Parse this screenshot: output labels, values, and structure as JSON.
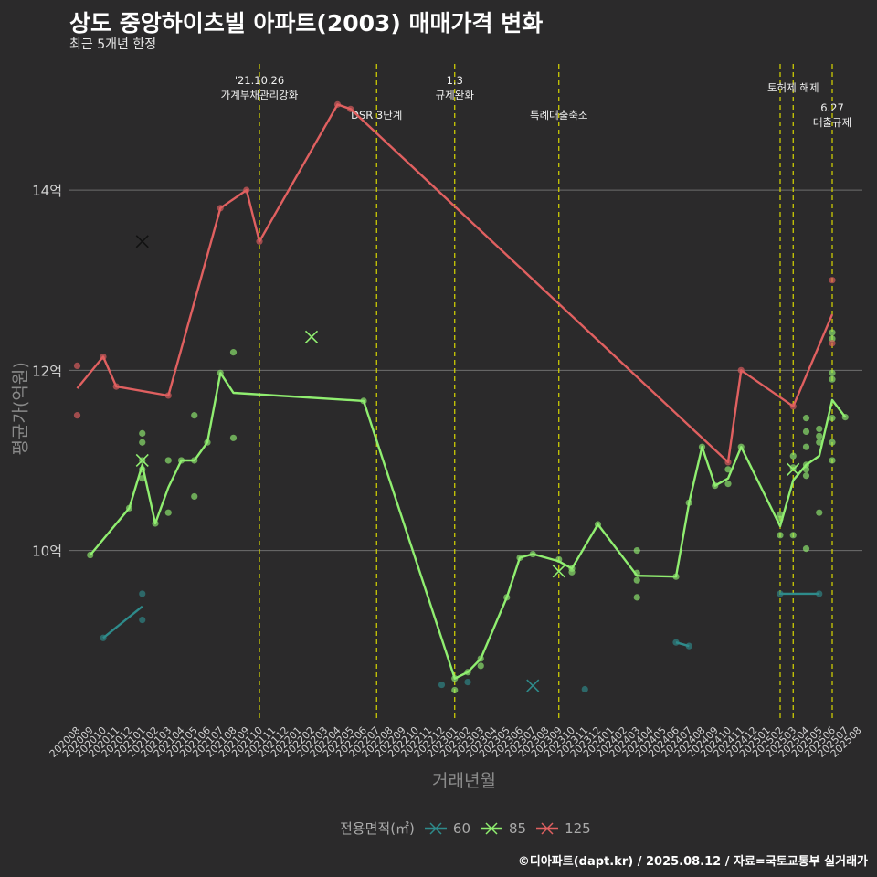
{
  "title": "상도 중앙하이츠빌 아파트(2003) 매매가격 변화",
  "subtitle": "최근 5개년 한정",
  "caption": "©디아파트(dapt.kr) / 2025.08.12 / 자료=국토교통부 실거래가",
  "chart_data": {
    "type": "line",
    "title": "상도 중앙하이츠빌 아파트(2003) 매매가격 변화",
    "subtitle": "최근 5개년 한정",
    "xlabel": "거래년월",
    "ylabel": "평균가(억원)",
    "ylim": [
      8.1,
      15.4
    ],
    "y_ticks": [
      10,
      12,
      14
    ],
    "y_tick_labels": [
      "10억",
      "12억",
      "14억"
    ],
    "grid": "horizontal major lines",
    "background": "#2b2a2b",
    "x_start": "2020-08",
    "x_end": "2025-08",
    "legend_title": "전용면적(㎡)",
    "legend_position": "bottom",
    "events": [
      {
        "x": "2021-10",
        "label": "'21.10.26\n가계부채관리강화",
        "row": 0
      },
      {
        "x": "2022-07",
        "label": "DSR 3단계",
        "row": 1
      },
      {
        "x": "2023-01",
        "label": "1.3\n규제완화",
        "row": 0
      },
      {
        "x": "2023-09",
        "label": "특례대출축소",
        "row": 1
      },
      {
        "x": "2025-02",
        "label": "",
        "row": 0
      },
      {
        "x": "2025-03",
        "label": "토허제 해제",
        "row": 2
      },
      {
        "x": "2025-06",
        "label": "6.27\n대출규제",
        "row": 3
      }
    ],
    "series": [
      {
        "name": "60",
        "color": "#2e8b8b",
        "line": [
          [
            "2020-10",
            9.03
          ],
          [
            "2021-01",
            9.38
          ]
        ],
        "line2": [
          [
            "2024-06",
            8.98
          ],
          [
            "2024-07",
            8.94
          ]
        ],
        "line3": [
          [
            "2025-02",
            9.52
          ],
          [
            "2025-05",
            9.52
          ]
        ],
        "points": [
          [
            "2020-10",
            9.03
          ],
          [
            "2021-01",
            9.52
          ],
          [
            "2021-01",
            9.23
          ],
          [
            "2022-12",
            8.51
          ],
          [
            "2023-02",
            8.54
          ],
          [
            "2023-11",
            8.46
          ],
          [
            "2024-06",
            8.98
          ],
          [
            "2024-07",
            8.94
          ],
          [
            "2025-02",
            9.52
          ],
          [
            "2025-05",
            9.52
          ]
        ],
        "x_marks": [
          [
            "2023-07",
            8.5
          ]
        ]
      },
      {
        "name": "85",
        "color": "#90ee70",
        "line": [
          [
            "2020-09",
            9.95
          ],
          [
            "2020-12",
            10.47
          ],
          [
            "2021-01",
            10.95
          ],
          [
            "2021-02",
            10.3
          ],
          [
            "2021-03",
            10.7
          ],
          [
            "2021-04",
            11.0
          ],
          [
            "2021-05",
            11.0
          ],
          [
            "2021-06",
            11.2
          ],
          [
            "2021-07",
            11.97
          ],
          [
            "2021-08",
            11.75
          ],
          [
            "2022-06",
            11.66
          ],
          [
            "2023-01",
            8.58
          ],
          [
            "2023-02",
            8.65
          ],
          [
            "2023-03",
            8.8
          ],
          [
            "2023-05",
            9.48
          ],
          [
            "2023-06",
            9.92
          ],
          [
            "2023-07",
            9.96
          ],
          [
            "2023-09",
            9.88
          ],
          [
            "2023-10",
            9.8
          ],
          [
            "2023-12",
            10.29
          ],
          [
            "2024-03",
            9.72
          ],
          [
            "2024-06",
            9.71
          ],
          [
            "2024-07",
            10.53
          ],
          [
            "2024-08",
            11.15
          ],
          [
            "2024-09",
            10.72
          ],
          [
            "2024-10",
            10.8
          ],
          [
            "2024-11",
            11.15
          ],
          [
            "2025-02",
            10.27
          ],
          [
            "2025-03",
            10.78
          ],
          [
            "2025-04",
            10.95
          ],
          [
            "2025-05",
            11.05
          ],
          [
            "2025-06",
            11.67
          ],
          [
            "2025-07",
            11.48
          ]
        ],
        "points": [
          [
            "2020-09",
            9.95
          ],
          [
            "2020-12",
            10.47
          ],
          [
            "2021-01",
            11.3
          ],
          [
            "2021-01",
            11.2
          ],
          [
            "2021-01",
            11.0
          ],
          [
            "2021-01",
            10.9
          ],
          [
            "2021-01",
            10.8
          ],
          [
            "2021-02",
            10.3
          ],
          [
            "2021-03",
            11.0
          ],
          [
            "2021-03",
            10.42
          ],
          [
            "2021-04",
            11.0
          ],
          [
            "2021-05",
            11.0
          ],
          [
            "2021-05",
            11.5
          ],
          [
            "2021-05",
            10.6
          ],
          [
            "2021-06",
            11.2
          ],
          [
            "2021-07",
            11.97
          ],
          [
            "2021-08",
            12.2
          ],
          [
            "2021-08",
            11.25
          ],
          [
            "2022-06",
            11.66
          ],
          [
            "2023-01",
            8.58
          ],
          [
            "2023-01",
            8.45
          ],
          [
            "2023-02",
            8.65
          ],
          [
            "2023-03",
            8.8
          ],
          [
            "2023-03",
            8.72
          ],
          [
            "2023-05",
            9.48
          ],
          [
            "2023-06",
            9.92
          ],
          [
            "2023-07",
            9.96
          ],
          [
            "2023-09",
            9.9
          ],
          [
            "2023-10",
            9.8
          ],
          [
            "2023-10",
            9.76
          ],
          [
            "2023-12",
            10.29
          ],
          [
            "2024-03",
            10.0
          ],
          [
            "2024-03",
            9.75
          ],
          [
            "2024-03",
            9.67
          ],
          [
            "2024-03",
            9.48
          ],
          [
            "2024-06",
            9.71
          ],
          [
            "2024-07",
            10.53
          ],
          [
            "2024-08",
            11.15
          ],
          [
            "2024-09",
            10.72
          ],
          [
            "2024-10",
            10.9
          ],
          [
            "2024-10",
            10.74
          ],
          [
            "2024-11",
            11.15
          ],
          [
            "2025-02",
            10.4
          ],
          [
            "2025-02",
            10.35
          ],
          [
            "2025-02",
            10.17
          ],
          [
            "2025-03",
            11.05
          ],
          [
            "2025-03",
            10.92
          ],
          [
            "2025-03",
            10.17
          ],
          [
            "2025-04",
            11.47
          ],
          [
            "2025-04",
            11.32
          ],
          [
            "2025-04",
            11.15
          ],
          [
            "2025-04",
            10.95
          ],
          [
            "2025-04",
            10.9
          ],
          [
            "2025-04",
            10.83
          ],
          [
            "2025-04",
            10.02
          ],
          [
            "2025-05",
            11.35
          ],
          [
            "2025-05",
            11.27
          ],
          [
            "2025-05",
            11.2
          ],
          [
            "2025-05",
            10.42
          ],
          [
            "2025-06",
            12.42
          ],
          [
            "2025-06",
            12.35
          ],
          [
            "2025-06",
            11.97
          ],
          [
            "2025-06",
            11.9
          ],
          [
            "2025-06",
            11.47
          ],
          [
            "2025-06",
            11.2
          ],
          [
            "2025-06",
            11.0
          ],
          [
            "2025-07",
            11.48
          ]
        ],
        "x_marks": [
          [
            "2021-01",
            11.0
          ],
          [
            "2022-02",
            12.37
          ],
          [
            "2023-09",
            9.77
          ],
          [
            "2025-03",
            10.9
          ]
        ]
      },
      {
        "name": "125",
        "color": "#e06060",
        "line": [
          [
            "2020-08",
            11.8
          ],
          [
            "2020-10",
            12.15
          ],
          [
            "2020-11",
            11.82
          ],
          [
            "2021-03",
            11.72
          ],
          [
            "2021-07",
            13.8
          ],
          [
            "2021-09",
            14.0
          ],
          [
            "2021-10",
            13.43
          ],
          [
            "2022-04",
            14.95
          ],
          [
            "2022-05",
            14.9
          ],
          [
            "2024-10",
            10.98
          ],
          [
            "2024-11",
            12.0
          ],
          [
            "2025-03",
            11.6
          ],
          [
            "2025-06",
            12.62
          ]
        ],
        "points": [
          [
            "2020-08",
            12.05
          ],
          [
            "2020-08",
            11.5
          ],
          [
            "2020-10",
            12.15
          ],
          [
            "2020-11",
            11.82
          ],
          [
            "2021-03",
            11.72
          ],
          [
            "2021-07",
            13.8
          ],
          [
            "2021-09",
            14.0
          ],
          [
            "2021-10",
            13.43
          ],
          [
            "2022-04",
            14.95
          ],
          [
            "2022-05",
            14.9
          ],
          [
            "2024-10",
            10.98
          ],
          [
            "2024-11",
            12.0
          ],
          [
            "2025-03",
            11.6
          ],
          [
            "2025-06",
            13.0
          ],
          [
            "2025-06",
            12.3
          ]
        ],
        "x_marks": [
          [
            "2021-01",
            13.43
          ]
        ]
      }
    ]
  }
}
